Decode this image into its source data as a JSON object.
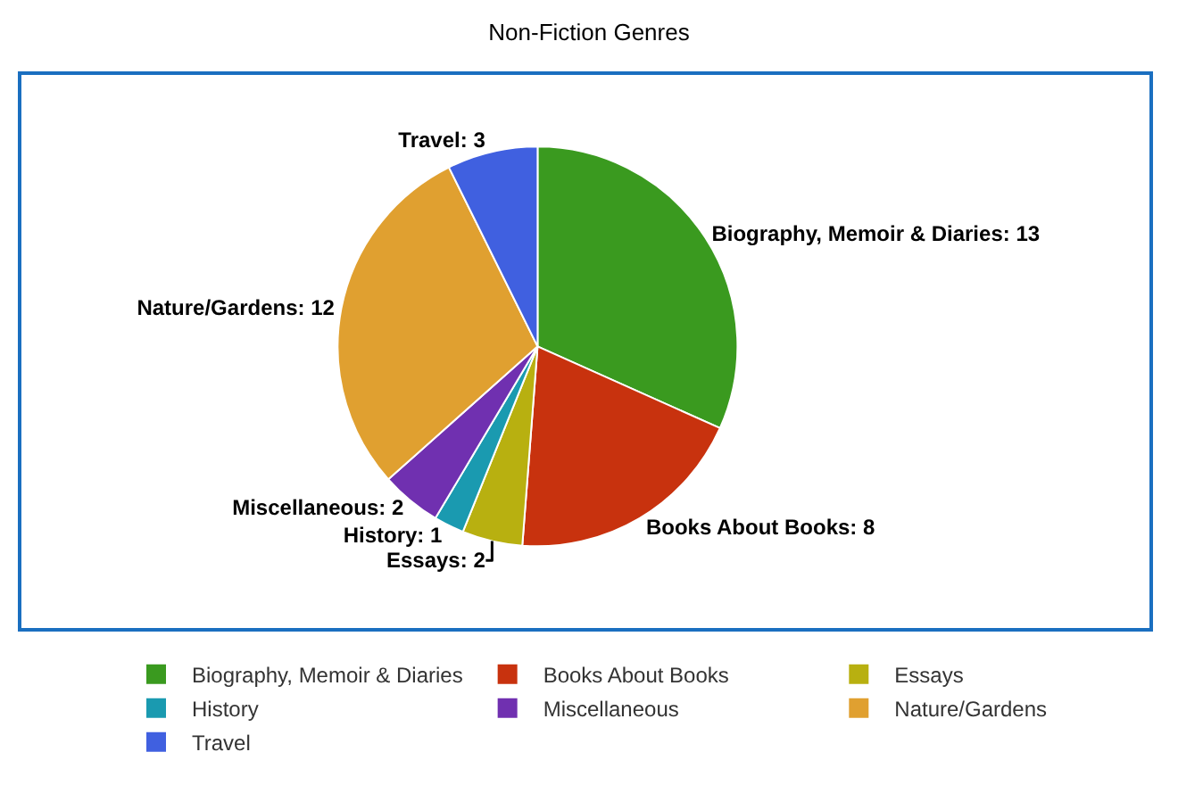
{
  "chart_data": {
    "type": "pie",
    "title": "Non-Fiction Genres",
    "categories": [
      "Biography, Memoir & Diaries",
      "Books About Books",
      "Essays",
      "History",
      "Miscellaneous",
      "Nature/Gardens",
      "Travel"
    ],
    "values": [
      13,
      8,
      2,
      1,
      2,
      12,
      3
    ],
    "colors": [
      "#3a9a1f",
      "#c8320e",
      "#b8b010",
      "#1a9ab0",
      "#7030b0",
      "#e0a030",
      "#4060e0"
    ],
    "value_labels": [
      "Biography, Memoir & Diaries: 13",
      "Books About Books: 8",
      "Essays: 2",
      "History: 1",
      "Miscellaneous: 2",
      "Nature/Gardens: 12",
      "Travel: 3"
    ],
    "legend": "bottom"
  }
}
